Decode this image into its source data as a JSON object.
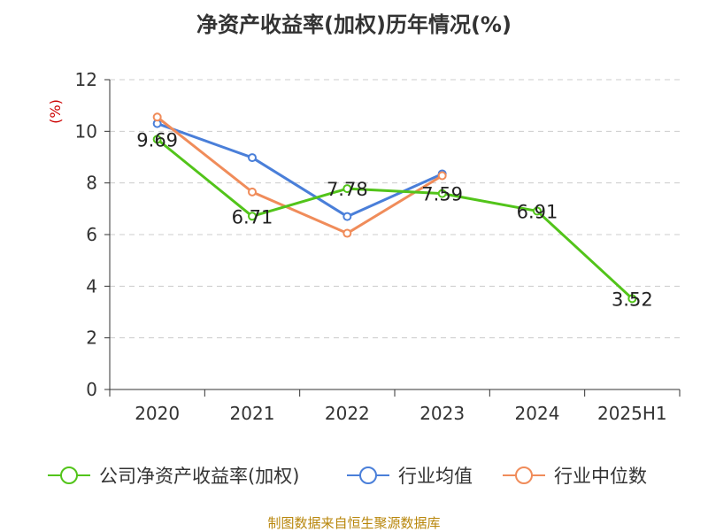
{
  "chart_data": {
    "type": "line",
    "title": "净资产收益率(加权)历年情况(%)",
    "ylabel": "(%)",
    "xlabel": "",
    "categories": [
      "2020",
      "2021",
      "2022",
      "2023",
      "2024",
      "2025H1"
    ],
    "ylim": [
      0,
      12
    ],
    "yticks": [
      0,
      2,
      4,
      6,
      8,
      10,
      12
    ],
    "grid": true,
    "legend_position": "bottom",
    "series": [
      {
        "name": "公司净资产收益率(加权)",
        "color": "#52c41a",
        "values": [
          9.69,
          6.71,
          7.78,
          7.59,
          6.91,
          3.52
        ],
        "show_labels": true
      },
      {
        "name": "行业均值",
        "color": "#4a7fd9",
        "values": [
          10.3,
          8.98,
          6.7,
          8.35,
          null,
          null
        ],
        "show_labels": false
      },
      {
        "name": "行业中位数",
        "color": "#f08c5a",
        "values": [
          10.55,
          7.65,
          6.05,
          8.28,
          null,
          null
        ],
        "show_labels": false
      }
    ]
  },
  "footer": "制图数据来自恒生聚源数据库"
}
